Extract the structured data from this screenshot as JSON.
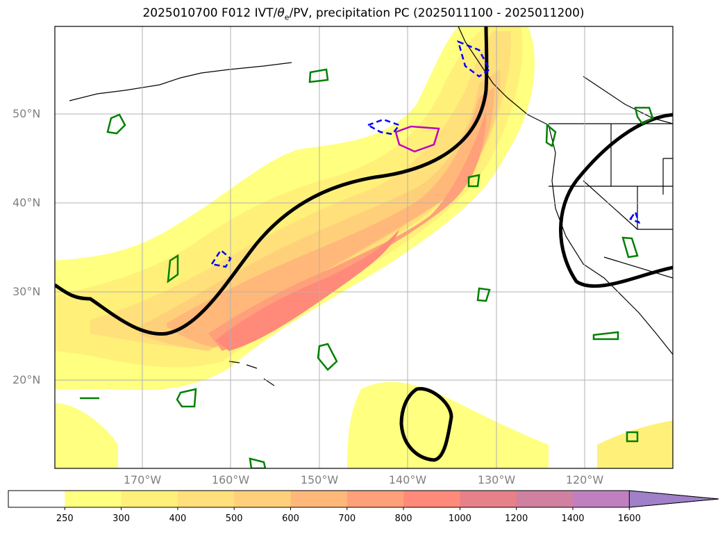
{
  "title": {
    "main": "2025010700 F012 IVT/",
    "theta": "θ",
    "sub": "e",
    "rest": "/PV, precipitation PC (2025011100 - 2025011200)"
  },
  "axes": {
    "lat_labels": [
      "50°N",
      "40°N",
      "30°N",
      "20°N"
    ],
    "lon_labels": [
      "170°W",
      "160°W",
      "150°W",
      "140°W",
      "130°W",
      "120°W"
    ],
    "lat_range": [
      10,
      60
    ],
    "lon_range": [
      -180,
      -110
    ],
    "grid": true
  },
  "colorbar": {
    "labels": [
      "250",
      "300",
      "400",
      "500",
      "600",
      "700",
      "800",
      "1000",
      "1200",
      "1400",
      "1600"
    ],
    "colors": [
      "#ffffff",
      "#ffff80",
      "#fff07a",
      "#ffe07a",
      "#ffd07a",
      "#ffb87a",
      "#ffa07a",
      "#ff8a7a",
      "#e8808a",
      "#d080a0",
      "#c080c0",
      "#a080c8"
    ],
    "extend": "max"
  },
  "colors": {
    "pv_contour": "#000000",
    "theta_e_contour": "#008000",
    "dashed_contour": "#0000ff",
    "magenta_contour": "#c000c0"
  }
}
